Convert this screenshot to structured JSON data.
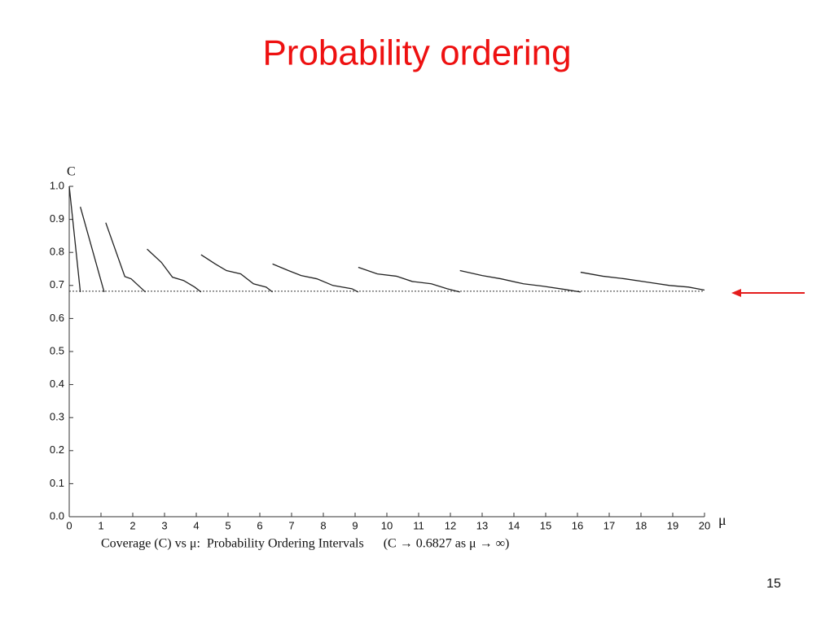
{
  "title": "Probability ordering",
  "page_number": "15",
  "chart_data": {
    "type": "line",
    "y_label": "C",
    "x_label": "μ",
    "caption": "Coverage (C) vs μ:  Probability Ordering Intervals      (C → 0.6827 as μ → ∞)",
    "x": [
      0,
      0.35,
      null,
      0.35,
      1.1,
      null,
      1.15,
      1.75,
      1.95,
      2.4,
      null,
      2.45,
      2.9,
      3.25,
      3.6,
      3.95,
      4.15,
      null,
      4.15,
      4.6,
      4.95,
      5.4,
      5.8,
      6.2,
      6.4,
      null,
      6.4,
      6.9,
      7.3,
      7.8,
      8.3,
      8.9,
      9.1,
      null,
      9.1,
      9.7,
      10.3,
      10.8,
      11.4,
      11.9,
      12.3,
      null,
      12.3,
      13.0,
      13.6,
      14.3,
      14.9,
      15.6,
      16.1,
      null,
      16.1,
      16.8,
      17.5,
      18.2,
      18.9,
      19.5,
      20
    ],
    "values": [
      1.0,
      0.68,
      null,
      0.938,
      0.68,
      null,
      0.89,
      0.727,
      0.72,
      0.68,
      null,
      0.81,
      0.77,
      0.725,
      0.715,
      0.695,
      0.68,
      null,
      0.793,
      0.765,
      0.745,
      0.735,
      0.705,
      0.695,
      0.68,
      null,
      0.765,
      0.745,
      0.73,
      0.72,
      0.7,
      0.69,
      0.68,
      null,
      0.755,
      0.735,
      0.728,
      0.712,
      0.705,
      0.69,
      0.68,
      null,
      0.745,
      0.73,
      0.72,
      0.705,
      0.698,
      0.688,
      0.68,
      null,
      0.74,
      0.728,
      0.72,
      0.71,
      0.7,
      0.695,
      0.686
    ],
    "color": "#222222",
    "reference_line": 0.6827,
    "xlim": [
      0,
      20
    ],
    "ylim": [
      0,
      1
    ],
    "xticks": [
      0,
      1,
      2,
      3,
      4,
      5,
      6,
      7,
      8,
      9,
      10,
      11,
      12,
      13,
      14,
      15,
      16,
      17,
      18,
      19,
      20
    ],
    "yticks": [
      {
        "value": 0,
        "label": "0.0"
      },
      0.1,
      0.2,
      0.3,
      0.4,
      0.5,
      0.6,
      0.7,
      0.8,
      0.9,
      {
        "value": 1,
        "label": "1.0"
      }
    ]
  }
}
